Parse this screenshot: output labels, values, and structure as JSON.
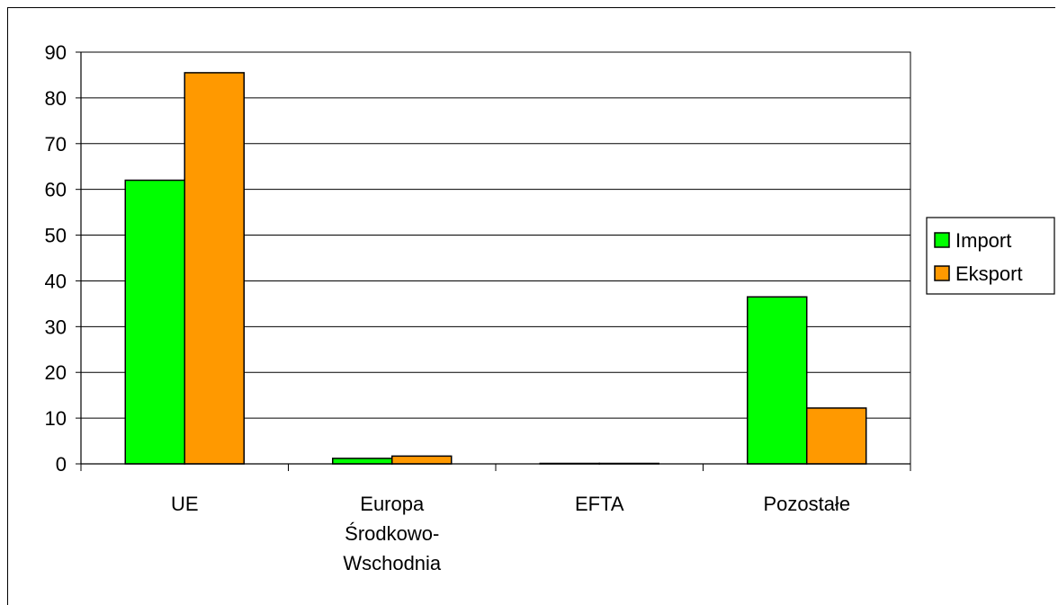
{
  "chart_data": {
    "type": "bar",
    "categories": [
      "UE",
      "Europa Środkowo-Wschodnia",
      "EFTA",
      "Pozostałe"
    ],
    "category_label_lines": [
      [
        "UE"
      ],
      [
        "Europa",
        "Środkowo-",
        "Wschodnia"
      ],
      [
        "EFTA"
      ],
      [
        "Pozostałe"
      ]
    ],
    "series": [
      {
        "name": "Import",
        "values": [
          62.0,
          1.2,
          0.1,
          36.5
        ],
        "color": "#00ff00"
      },
      {
        "name": "Eksport",
        "values": [
          85.5,
          1.7,
          0.1,
          12.2
        ],
        "color": "#ff9900"
      }
    ],
    "ylim": [
      0,
      90
    ],
    "yticks": [
      0,
      10,
      20,
      30,
      40,
      50,
      60,
      70,
      80,
      90
    ],
    "grid": true,
    "legend_position": "right",
    "title": "",
    "xlabel": "",
    "ylabel": ""
  },
  "legend": {
    "items": [
      {
        "label": "Import",
        "color": "#00ff00"
      },
      {
        "label": "Eksport",
        "color": "#ff9900"
      }
    ]
  }
}
